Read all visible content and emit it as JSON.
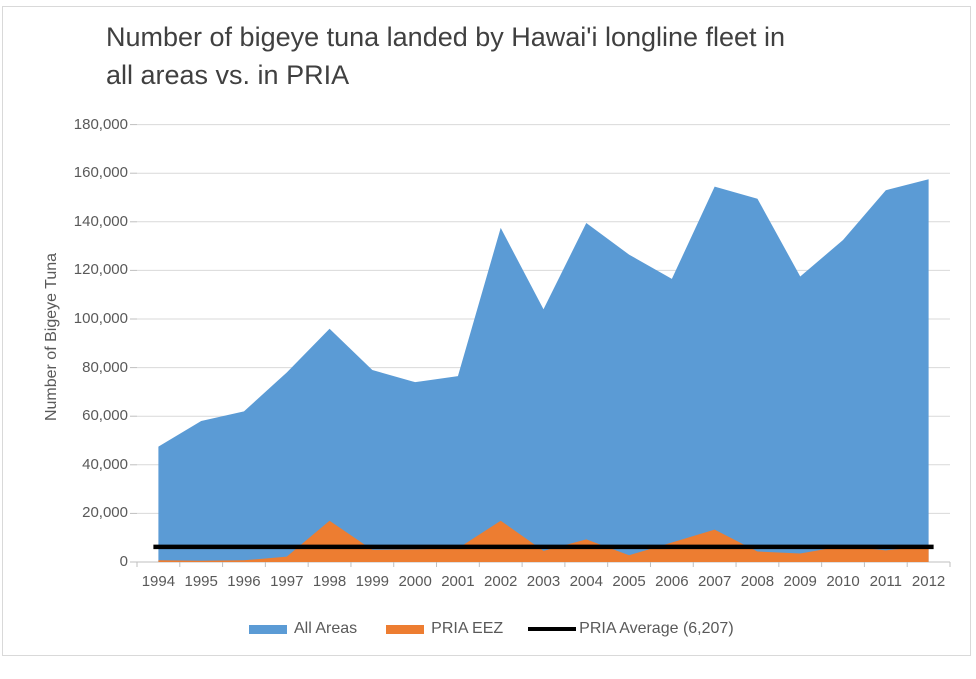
{
  "title": {
    "line1": "Number of bigeye tuna landed by Hawai'i longline fleet in",
    "line2": "all areas vs. in PRIA"
  },
  "y_axis": {
    "title": "Number of Bigeye Tuna",
    "tick_labels": [
      "0",
      "20,000",
      "40,000",
      "60,000",
      "80,000",
      "100,000",
      "120,000",
      "140,000",
      "160,000",
      "180,000"
    ]
  },
  "x_axis": {
    "tick_labels": [
      "1994",
      "1995",
      "1996",
      "1997",
      "1998",
      "1999",
      "2000",
      "2001",
      "2002",
      "2003",
      "2004",
      "2005",
      "2006",
      "2007",
      "2008",
      "2009",
      "2010",
      "2011",
      "2012"
    ]
  },
  "legend": {
    "all_areas": "All Areas",
    "pria_eez": "PRIA EEZ",
    "pria_average": "PRIA Average (6,207)"
  },
  "colors": {
    "all_areas": "#5B9BD5",
    "pria_eez": "#ED7D31",
    "average_line": "#000000",
    "gridline": "#D9D9D9",
    "axis_line": "#BFBFBF",
    "label_text": "#595959",
    "title_text": "#404040",
    "frame_border": "#D9D9D9"
  },
  "chart_data": {
    "type": "area",
    "title": "Number of bigeye tuna landed by Hawai'i longline fleet in all areas vs. in PRIA",
    "xlabel": "",
    "ylabel": "Number of Bigeye Tuna",
    "ylim": [
      0,
      180000
    ],
    "ytick_step": 20000,
    "grid": true,
    "legend_position": "bottom",
    "categories": [
      1994,
      1995,
      1996,
      1997,
      1998,
      1999,
      2000,
      2001,
      2002,
      2003,
      2004,
      2005,
      2006,
      2007,
      2008,
      2009,
      2010,
      2011,
      2012
    ],
    "series": [
      {
        "name": "All Areas",
        "color": "#5B9BD5",
        "values": [
          47500,
          58000,
          62000,
          78000,
          96000,
          79000,
          74000,
          76500,
          137500,
          104000,
          139500,
          126500,
          116500,
          154500,
          149500,
          117500,
          132500,
          153000,
          157500
        ]
      },
      {
        "name": "PRIA EEZ",
        "color": "#ED7D31",
        "values": [
          700,
          500,
          700,
          2200,
          17000,
          5000,
          5200,
          5600,
          17000,
          4600,
          9300,
          2800,
          8000,
          13300,
          4300,
          3500,
          6600,
          4800,
          6500
        ]
      }
    ],
    "reference_line": {
      "name": "PRIA Average (6,207)",
      "value": 6207,
      "color": "#000000"
    }
  }
}
